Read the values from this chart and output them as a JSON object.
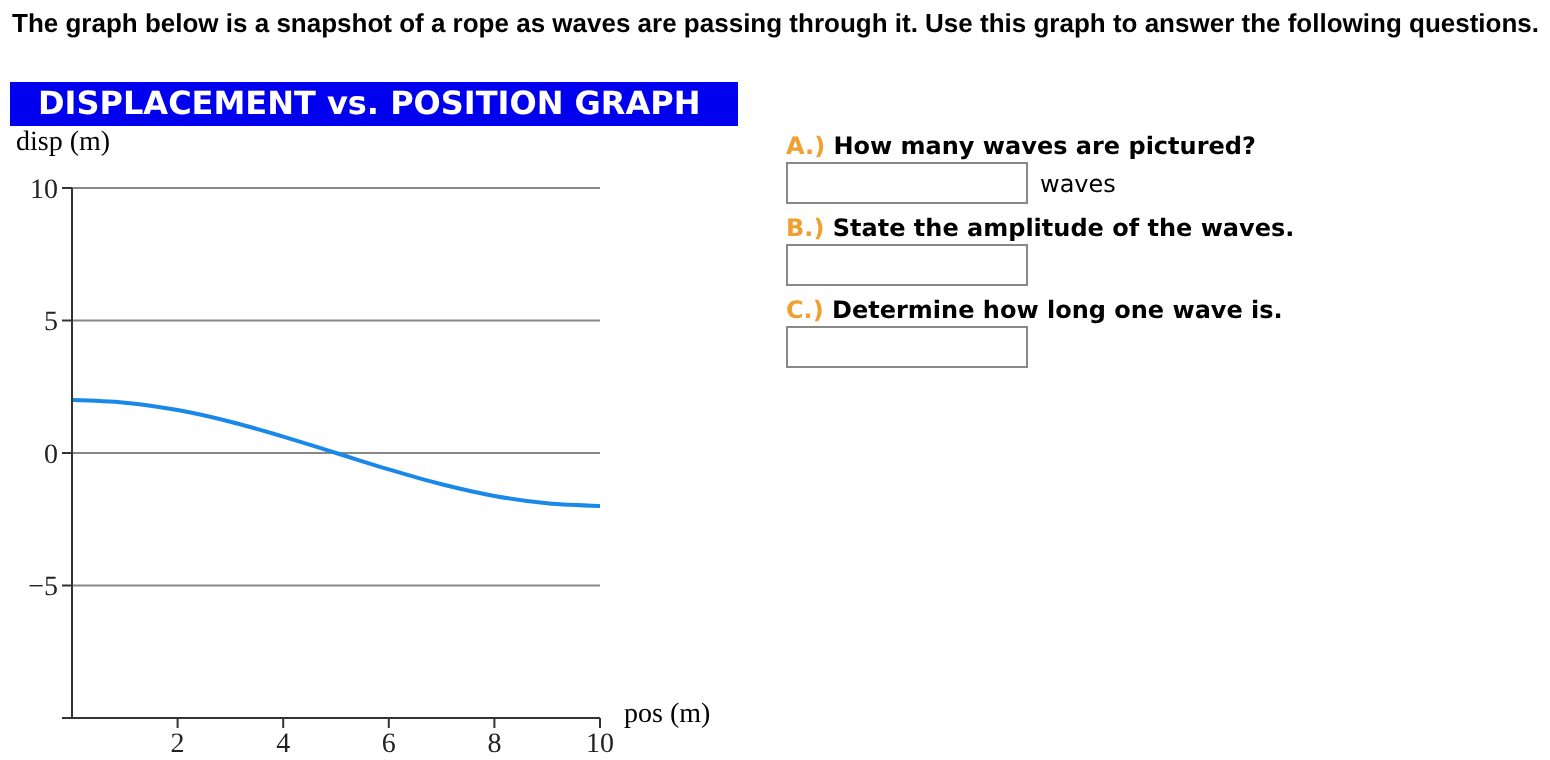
{
  "chart_data": {
    "type": "line",
    "title": "DISPLACEMENT vs. POSITION GRAPH",
    "xlabel": "pos (m)",
    "ylabel": "disp (m)",
    "x": [
      0,
      1,
      2,
      3,
      4,
      5,
      6,
      7,
      8,
      9,
      10
    ],
    "series": [
      {
        "color": "#1a88e8",
        "values": [
          2,
          1.9,
          1.62,
          1.18,
          0.62,
          0,
          -0.62,
          -1.18,
          -1.62,
          -1.9,
          -2
        ]
      }
    ],
    "xlim": [
      0,
      10
    ],
    "xticks": [
      2,
      4,
      6,
      8,
      10
    ],
    "ylim": [
      -10,
      10
    ],
    "yticks": [
      {
        "value": -10,
        "label": null
      },
      {
        "value": -5,
        "label": "−5"
      },
      0,
      5,
      10
    ],
    "grid": "y",
    "marker": "none",
    "line_style": "solid",
    "annotations": [
      "The graph below is a snapshot of a rope as waves are passing through it. Use this graph to answer the following questions.",
      "A.) How many waves are pictured?",
      "waves",
      "B.) State the amplitude of the waves.",
      "C.) Determine how long one wave is."
    ]
  }
}
